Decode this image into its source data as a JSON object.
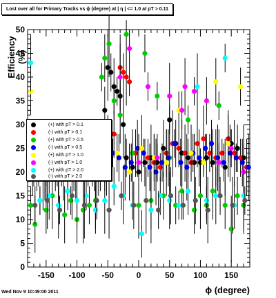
{
  "title": "Lost over all for Primary Tracks vs ϕ (degree) at | η | <= 1.0 at pT > 0.11",
  "timestamp": "Wed Nov  9 10:49:00 2011",
  "chart_data": {
    "type": "scatter",
    "xlabel": "ϕ (degree)",
    "ylabel": "Efficiency (%)",
    "xlim": [
      -180,
      180
    ],
    "ylim": [
      0,
      50
    ],
    "x_ticks": [
      -150,
      -100,
      -50,
      0,
      50,
      100,
      150
    ],
    "y_ticks": [
      0,
      5,
      10,
      15,
      20,
      25,
      30,
      35,
      40,
      45,
      50
    ],
    "grid": false,
    "legend_position": "left-middle",
    "series": [
      {
        "name": "(+) with pT > 0.1",
        "color": "#000000",
        "x": [
          -170,
          -150,
          -130,
          -110,
          -90,
          -70,
          -55,
          -50,
          -45,
          -40,
          -35,
          -30,
          -25,
          -20,
          -10,
          0,
          10,
          20,
          30,
          40,
          50,
          60,
          70,
          80,
          90,
          100,
          110,
          120,
          130,
          140,
          150,
          160,
          170
        ],
        "y": [
          21,
          22,
          21,
          22,
          21,
          22,
          33,
          42,
          41,
          38,
          37,
          36,
          30,
          23,
          21,
          20,
          22,
          23,
          22,
          25,
          31,
          26,
          24,
          23,
          22,
          22,
          23,
          22,
          22,
          21,
          26,
          25,
          23
        ]
      },
      {
        "name": "(-) with pT > 0.1",
        "color": "#ff0000",
        "x": [
          -165,
          -145,
          -125,
          -105,
          -85,
          -65,
          -50,
          -40,
          -30,
          -25,
          -20,
          -15,
          -5,
          5,
          15,
          25,
          35,
          45,
          55,
          65,
          75,
          85,
          95,
          105,
          115,
          125,
          135,
          145,
          155,
          165,
          175
        ],
        "y": [
          22,
          21,
          22,
          23,
          22,
          21,
          29,
          28,
          42,
          41,
          40,
          39,
          24,
          25,
          23,
          22,
          21,
          24,
          26,
          25,
          24,
          22,
          26,
          27,
          24,
          23,
          24,
          27,
          24,
          23,
          21
        ]
      },
      {
        "name": "(+) with pT > 0.5",
        "color": "#00cc00",
        "x": [
          -175,
          -168,
          -160,
          -150,
          -140,
          -130,
          -120,
          -110,
          -100,
          -90,
          -80,
          -70,
          -60,
          -55,
          -48,
          -40,
          -30,
          -20,
          -10,
          0,
          10,
          20,
          30,
          40,
          50,
          60,
          70,
          80,
          90,
          100,
          110,
          120,
          130,
          140,
          150,
          160,
          170
        ],
        "y": [
          13,
          9,
          14,
          12,
          15,
          13,
          11,
          14,
          10,
          12,
          13,
          14,
          40,
          44,
          47,
          35,
          32,
          49,
          24,
          13,
          45,
          14,
          36,
          15,
          23,
          13,
          16,
          31,
          12,
          15,
          13,
          16,
          34,
          13,
          8,
          15,
          13
        ]
      },
      {
        "name": "(-) with pT > 0.5",
        "color": "#0000ee",
        "x": [
          -172,
          -162,
          -152,
          -142,
          -132,
          -122,
          -112,
          -102,
          -92,
          -82,
          -72,
          -62,
          -52,
          -42,
          -32,
          -22,
          -12,
          -2,
          8,
          18,
          28,
          38,
          48,
          58,
          68,
          78,
          88,
          98,
          108,
          118,
          128,
          138,
          148,
          158,
          168,
          178
        ],
        "y": [
          22,
          21,
          20,
          23,
          22,
          21,
          22,
          20,
          21,
          22,
          23,
          20,
          21,
          24,
          23,
          21,
          22,
          25,
          24,
          21,
          20,
          22,
          23,
          26,
          22,
          21,
          24,
          23,
          25,
          26,
          23,
          22,
          24,
          23,
          22,
          21
        ]
      },
      {
        "name": "(+) with pT > 1.0",
        "color": "#ffff00",
        "x": [
          -175,
          -155,
          -135,
          -115,
          -95,
          -75,
          -55,
          -35,
          -15,
          5,
          25,
          45,
          65,
          85,
          105,
          125,
          145,
          165
        ],
        "y": [
          37,
          19,
          20,
          21,
          24,
          22,
          23,
          24,
          20,
          25,
          23,
          22,
          33,
          24,
          22,
          39,
          26,
          38
        ]
      },
      {
        "name": "(-) with pT > 1.0",
        "color": "#ff00ff",
        "x": [
          -170,
          -150,
          -130,
          -110,
          -90,
          -70,
          -50,
          -30,
          -15,
          0,
          15,
          30,
          50,
          70,
          75,
          90,
          110,
          130,
          150,
          170
        ],
        "y": [
          20,
          22,
          21,
          23,
          22,
          21,
          24,
          40,
          46,
          22,
          38,
          23,
          36,
          33,
          38,
          37,
          35,
          22,
          25,
          20
        ]
      },
      {
        "name": "(+) with pT > 2.0",
        "color": "#00ffff",
        "x": [
          -175,
          -160,
          -145,
          -130,
          -115,
          -100,
          -85,
          -70,
          -55,
          -40,
          -25,
          -10,
          5,
          20,
          35,
          50,
          65,
          80,
          95,
          110,
          125,
          140,
          155,
          170
        ],
        "y": [
          43,
          14,
          15,
          13,
          16,
          14,
          15,
          12,
          14,
          17,
          15,
          13,
          7,
          12,
          15,
          14,
          13,
          16,
          38,
          14,
          15,
          44,
          13,
          15
        ]
      },
      {
        "name": "(-) with pT > 2.0",
        "color": "#555555",
        "x": [
          -168,
          -148,
          -128,
          -108,
          -88,
          -68,
          -48,
          -28,
          -8,
          12,
          32,
          52,
          72,
          92,
          112,
          132,
          152,
          172
        ],
        "y": [
          13,
          14,
          12,
          15,
          13,
          14,
          12,
          15,
          13,
          14,
          12,
          15,
          13,
          14,
          12,
          15,
          13,
          14
        ]
      }
    ]
  }
}
